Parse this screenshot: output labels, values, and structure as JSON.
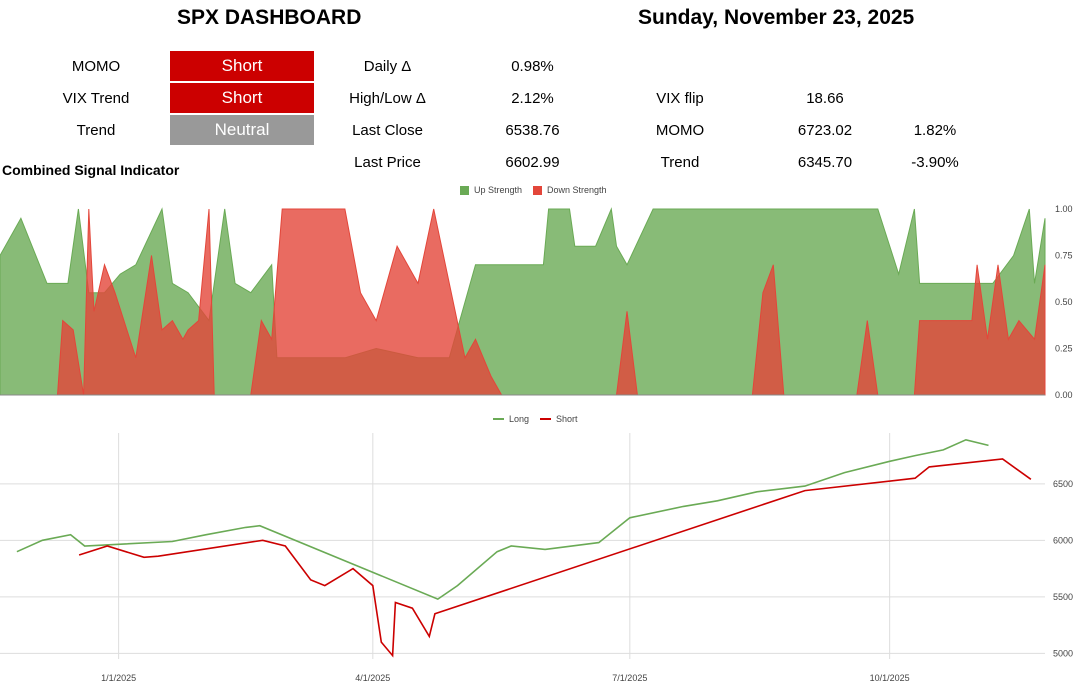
{
  "header": {
    "title": "SPX DASHBOARD",
    "date": "Sunday, November 23, 2025"
  },
  "signals": [
    {
      "label": "MOMO",
      "value": "Short",
      "color": "#cc0000"
    },
    {
      "label": "VIX Trend",
      "value": "Short",
      "color": "#cc0000"
    },
    {
      "label": "Trend",
      "value": "Neutral",
      "color": "#999999"
    }
  ],
  "stats": [
    {
      "label": "Daily Δ",
      "value": "0.98%"
    },
    {
      "label": "High/Low Δ",
      "value": "2.12%"
    },
    {
      "label": "Last Close",
      "value": "6538.76"
    },
    {
      "label": "Last Price",
      "value": "6602.99"
    }
  ],
  "levels": [
    {
      "label": "VIX flip",
      "value": "18.66",
      "pct": ""
    },
    {
      "label": "MOMO",
      "value": "6723.02",
      "pct": "1.82%"
    },
    {
      "label": "Trend",
      "value": "6345.70",
      "pct": "-3.90%"
    }
  ],
  "section_title": "Combined Signal Indicator",
  "colors": {
    "up": "#6aaa55",
    "down": "#e3463a",
    "long": "#6aaa55",
    "short": "#cc0000"
  },
  "chart_data": [
    {
      "type": "area",
      "legend": [
        "Up Strength",
        "Down Strength"
      ],
      "legend_position": "top-center",
      "ylim": [
        0,
        1
      ],
      "yticks": [
        "0.00",
        "0.25",
        "0.50",
        "0.75",
        "1.00"
      ],
      "grid": false,
      "series": [
        {
          "name": "Up Strength",
          "color": "#6aaa55",
          "segments": [
            [
              0,
              0.75
            ],
            [
              0.02,
              0.95
            ],
            [
              0.045,
              0.6
            ],
            [
              0.065,
              0.6
            ],
            [
              0.075,
              1
            ],
            [
              0.085,
              0.55
            ],
            [
              0.1,
              0.55
            ],
            [
              0.115,
              0.65
            ],
            [
              0.13,
              0.7
            ],
            [
              0.155,
              1
            ],
            [
              0.165,
              0.6
            ],
            [
              0.18,
              0.55
            ],
            [
              0.2,
              0.4
            ],
            [
              0.215,
              1
            ],
            [
              0.225,
              0.6
            ],
            [
              0.24,
              0.55
            ],
            [
              0.26,
              0.7
            ],
            [
              0.265,
              0.2
            ],
            [
              0.3,
              0.2
            ],
            [
              0.33,
              0.2
            ],
            [
              0.36,
              0.25
            ],
            [
              0.4,
              0.2
            ],
            [
              0.43,
              0.2
            ],
            [
              0.445,
              0.5
            ],
            [
              0.455,
              0.7
            ],
            [
              0.48,
              0.7
            ],
            [
              0.5,
              0.7
            ],
            [
              0.52,
              0.7
            ],
            [
              0.525,
              1
            ],
            [
              0.545,
              1
            ],
            [
              0.55,
              0.8
            ],
            [
              0.57,
              0.8
            ],
            [
              0.585,
              1
            ],
            [
              0.59,
              0.8
            ],
            [
              0.6,
              0.7
            ],
            [
              0.625,
              1
            ],
            [
              0.69,
              1
            ],
            [
              0.74,
              1
            ],
            [
              0.77,
              1
            ],
            [
              0.8,
              1
            ],
            [
              0.82,
              1
            ],
            [
              0.84,
              1
            ],
            [
              0.86,
              0.65
            ],
            [
              0.875,
              1
            ],
            [
              0.88,
              0.6
            ],
            [
              0.93,
              0.6
            ],
            [
              0.95,
              0.6
            ],
            [
              0.97,
              0.75
            ],
            [
              0.985,
              1
            ],
            [
              0.99,
              0.6
            ],
            [
              1,
              0.95
            ]
          ]
        },
        {
          "name": "Down Strength",
          "color": "#e3463a",
          "segments": [
            [
              0,
              0
            ],
            [
              0.055,
              0
            ],
            [
              0.06,
              0.4
            ],
            [
              0.07,
              0.35
            ],
            [
              0.08,
              0
            ],
            [
              0.085,
              1
            ],
            [
              0.09,
              0.45
            ],
            [
              0.1,
              0.7
            ],
            [
              0.11,
              0.55
            ],
            [
              0.13,
              0.2
            ],
            [
              0.145,
              0.75
            ],
            [
              0.155,
              0.35
            ],
            [
              0.165,
              0.4
            ],
            [
              0.175,
              0.3
            ],
            [
              0.18,
              0.35
            ],
            [
              0.19,
              0.4
            ],
            [
              0.2,
              1
            ],
            [
              0.205,
              0
            ],
            [
              0.24,
              0
            ],
            [
              0.25,
              0.4
            ],
            [
              0.26,
              0.3
            ],
            [
              0.27,
              1
            ],
            [
              0.3,
              1
            ],
            [
              0.33,
              1
            ],
            [
              0.345,
              0.55
            ],
            [
              0.36,
              0.4
            ],
            [
              0.38,
              0.8
            ],
            [
              0.4,
              0.6
            ],
            [
              0.415,
              1
            ],
            [
              0.43,
              0.6
            ],
            [
              0.445,
              0.2
            ],
            [
              0.455,
              0.3
            ],
            [
              0.47,
              0.1
            ],
            [
              0.48,
              0
            ],
            [
              0.59,
              0
            ],
            [
              0.6,
              0.45
            ],
            [
              0.61,
              0
            ],
            [
              0.67,
              0
            ],
            [
              0.72,
              0
            ],
            [
              0.73,
              0.55
            ],
            [
              0.74,
              0.7
            ],
            [
              0.75,
              0
            ],
            [
              0.82,
              0
            ],
            [
              0.83,
              0.4
            ],
            [
              0.84,
              0
            ],
            [
              0.875,
              0
            ],
            [
              0.88,
              0.4
            ],
            [
              0.9,
              0.4
            ],
            [
              0.93,
              0.4
            ],
            [
              0.935,
              0.7
            ],
            [
              0.945,
              0.3
            ],
            [
              0.955,
              0.7
            ],
            [
              0.965,
              0.3
            ],
            [
              0.975,
              0.4
            ],
            [
              0.99,
              0.3
            ],
            [
              1,
              0.7
            ]
          ]
        }
      ]
    },
    {
      "type": "line",
      "legend": [
        "Long",
        "Short"
      ],
      "legend_position": "top-center",
      "x_ticks": [
        "1/1/2025",
        "4/1/2025",
        "7/1/2025",
        "10/1/2025"
      ],
      "ylim": [
        4950,
        6950
      ],
      "yticks": [
        5000,
        5500,
        6000,
        6500
      ],
      "grid": true,
      "series": [
        {
          "name": "Long",
          "color": "#6aaa55",
          "points": [
            [
              "2024-11-26",
              5900
            ],
            [
              "2024-12-05",
              6000
            ],
            [
              "2024-12-15",
              6050
            ],
            [
              "2024-12-20",
              5950
            ],
            [
              "2025-01-20",
              5990
            ],
            [
              "2025-02-01",
              6050
            ],
            [
              "2025-02-15",
              6115
            ],
            [
              "2025-02-20",
              6130
            ],
            [
              "2025-04-24",
              5480
            ],
            [
              "2025-05-01",
              5600
            ],
            [
              "2025-05-15",
              5900
            ],
            [
              "2025-05-20",
              5950
            ],
            [
              "2025-06-01",
              5920
            ],
            [
              "2025-06-20",
              5980
            ],
            [
              "2025-07-01",
              6200
            ],
            [
              "2025-07-20",
              6300
            ],
            [
              "2025-08-01",
              6350
            ],
            [
              "2025-08-15",
              6430
            ],
            [
              "2025-09-01",
              6480
            ],
            [
              "2025-09-15",
              6600
            ],
            [
              "2025-10-01",
              6700
            ],
            [
              "2025-10-10",
              6750
            ],
            [
              "2025-10-20",
              6800
            ],
            [
              "2025-10-28",
              6890
            ],
            [
              "2025-11-05",
              6840
            ]
          ]
        },
        {
          "name": "Short",
          "color": "#cc0000",
          "points": [
            [
              "2024-12-18",
              5870
            ],
            [
              "2024-12-28",
              5950
            ],
            [
              "2025-01-10",
              5850
            ],
            [
              "2025-01-15",
              5860
            ],
            [
              "2025-02-21",
              6000
            ],
            [
              "2025-03-01",
              5950
            ],
            [
              "2025-03-10",
              5650
            ],
            [
              "2025-03-15",
              5600
            ],
            [
              "2025-03-25",
              5750
            ],
            [
              "2025-04-01",
              5600
            ],
            [
              "2025-04-04",
              5100
            ],
            [
              "2025-04-08",
              4980
            ],
            [
              "2025-04-09",
              5450
            ],
            [
              "2025-04-15",
              5400
            ],
            [
              "2025-04-21",
              5150
            ],
            [
              "2025-04-23",
              5350
            ],
            [
              "2025-09-01",
              6440
            ],
            [
              "2025-10-10",
              6550
            ],
            [
              "2025-10-15",
              6650
            ],
            [
              "2025-11-10",
              6720
            ],
            [
              "2025-11-20",
              6540
            ]
          ]
        }
      ]
    }
  ]
}
